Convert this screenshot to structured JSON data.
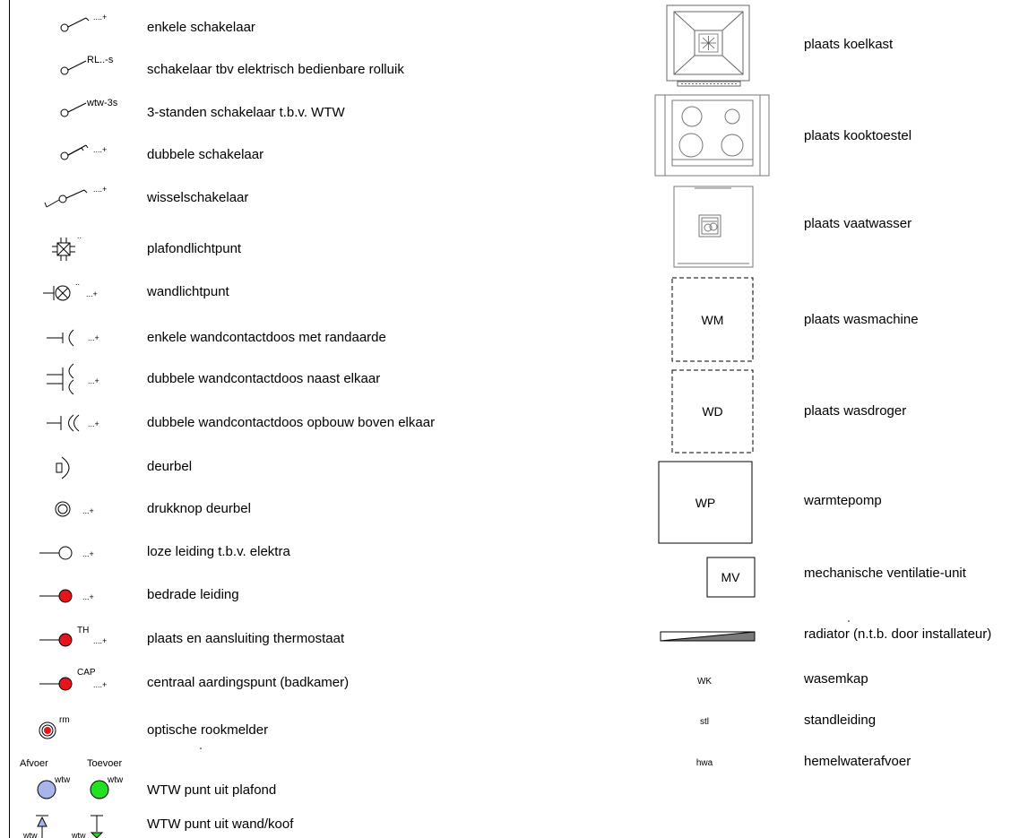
{
  "left_legend": [
    {
      "symbol": "enkele-schakelaar-symbol",
      "sup": "....+",
      "label": "enkele schakelaar"
    },
    {
      "symbol": "rolluik-schakelaar-symbol",
      "sup": "RL..-s",
      "label": "schakelaar tbv elektrisch bedienbare rolluik"
    },
    {
      "symbol": "wtw-schakelaar-symbol",
      "sup": "wtw-3s",
      "label": "3-standen schakelaar t.b.v. WTW"
    },
    {
      "symbol": "dubbele-schakelaar-symbol",
      "sup": "....+",
      "label": "dubbele schakelaar"
    },
    {
      "symbol": "wisselschakelaar-symbol",
      "sup": "....+",
      "label": "wisselschakelaar"
    },
    {
      "symbol": "plafondlichtpunt-symbol",
      "sup": "..",
      "label": "plafondlichtpunt"
    },
    {
      "symbol": "wandlichtpunt-symbol",
      "sup": "...+",
      "label": "wandlichtpunt"
    },
    {
      "symbol": "enkele-wcd-symbol",
      "sup": "...+",
      "label": "enkele wandcontactdoos met randaarde"
    },
    {
      "symbol": "dubbele-wcd-symbol",
      "sup": "...+",
      "label": "dubbele wandcontactdoos naast elkaar"
    },
    {
      "symbol": "dubbele-wcd-opbouw-symbol",
      "sup": "...+",
      "label": "dubbele wandcontactdoos opbouw boven elkaar"
    },
    {
      "symbol": "deurbel-symbol",
      "sup": "",
      "label": "deurbel"
    },
    {
      "symbol": "drukknop-symbol",
      "sup": "...+",
      "label": "drukknop deurbel"
    },
    {
      "symbol": "loze-leiding-symbol",
      "sup": "...+",
      "label": "loze leiding t.b.v. elektra"
    },
    {
      "symbol": "bedrade-leiding-symbol",
      "sup": "...+",
      "label": "bedrade leiding"
    },
    {
      "symbol": "thermostaat-symbol",
      "sup": "TH",
      "sup2": "....+",
      "label": "plaats en aansluiting thermostaat"
    },
    {
      "symbol": "aardingspunt-symbol",
      "sup": "CAP",
      "sup2": "....+",
      "label": "centraal aardingspunt (badkamer)"
    },
    {
      "symbol": "rookmelder-symbol",
      "sup": "rm",
      "label": "optische rookmelder"
    },
    {
      "symbol": "wtw-plafond-symbol",
      "sup": "wtw",
      "label": "WTW punt uit plafond"
    },
    {
      "symbol": "wtw-wand-symbol",
      "sup": "wtw",
      "label": "WTW punt uit wand/koof"
    }
  ],
  "wtw_headers": {
    "afvoer": "Afvoer",
    "toevoer": "Toevoer"
  },
  "right_legend": [
    {
      "tag": "",
      "label": "plaats koelkast"
    },
    {
      "tag": "",
      "label": "plaats kooktoestel"
    },
    {
      "tag": "",
      "label": "plaats vaatwasser"
    },
    {
      "tag": "WM",
      "label": "plaats wasmachine"
    },
    {
      "tag": "WD",
      "label": "plaats wasdroger"
    },
    {
      "tag": "WP",
      "label": "warmtepomp"
    },
    {
      "tag": "MV",
      "label": "mechanische ventilatie-unit"
    },
    {
      "tag": "",
      "label": "radiator (n.t.b. door installateur)"
    },
    {
      "tag": "WK",
      "label": "wasemkap"
    },
    {
      "tag": "stl",
      "label": "standleiding"
    },
    {
      "tag": "hwa",
      "label": "hemelwaterafvoer"
    }
  ],
  "colors": {
    "red": "#e8141b",
    "afvoer_fill": "#a9b4ea",
    "toevoer_fill": "#23e022",
    "stroke": "#000000"
  }
}
